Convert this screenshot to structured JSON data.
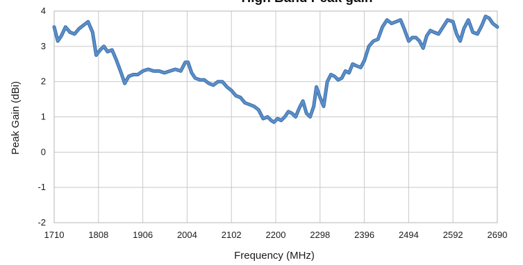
{
  "chart_data": {
    "type": "line",
    "title": "High Band Peak gain",
    "xlabel": "Frequency (MHz)",
    "ylabel": "Peak Gain (dBi)",
    "xlim": [
      1710,
      2690
    ],
    "ylim": [
      -2,
      4
    ],
    "x_ticks": [
      1710,
      1808,
      1906,
      2004,
      2102,
      2200,
      2298,
      2396,
      2494,
      2592,
      2690
    ],
    "y_ticks": [
      -2,
      -1,
      0,
      1,
      2,
      3,
      4
    ],
    "grid": true,
    "legend": "none",
    "line_color": "#5b8fc9",
    "line_outline_color": "#3a6da8",
    "series": [
      {
        "x": [
          1710,
          1718,
          1726,
          1735,
          1745,
          1755,
          1765,
          1775,
          1785,
          1795,
          1803,
          1812,
          1820,
          1828,
          1838,
          1848,
          1858,
          1866,
          1875,
          1885,
          1895,
          1906,
          1918,
          1930,
          1942,
          1954,
          1966,
          1978,
          1990,
          2000,
          2006,
          2014,
          2022,
          2032,
          2042,
          2052,
          2062,
          2072,
          2082,
          2092,
          2102,
          2112,
          2122,
          2132,
          2142,
          2152,
          2162,
          2172,
          2182,
          2190,
          2196,
          2204,
          2212,
          2220,
          2228,
          2236,
          2244,
          2252,
          2260,
          2268,
          2276,
          2284,
          2290,
          2298,
          2306,
          2314,
          2322,
          2330,
          2338,
          2346,
          2354,
          2362,
          2370,
          2378,
          2388,
          2396,
          2406,
          2416,
          2426,
          2436,
          2446,
          2456,
          2466,
          2476,
          2484,
          2494,
          2502,
          2510,
          2518,
          2526,
          2534,
          2542,
          2550,
          2560,
          2570,
          2580,
          2592,
          2600,
          2608,
          2616,
          2626,
          2636,
          2646,
          2656,
          2664,
          2672,
          2680,
          2690
        ],
        "y": [
          3.55,
          3.15,
          3.3,
          3.55,
          3.4,
          3.35,
          3.5,
          3.6,
          3.7,
          3.4,
          2.75,
          2.9,
          3.0,
          2.85,
          2.9,
          2.6,
          2.25,
          1.95,
          2.15,
          2.2,
          2.2,
          2.3,
          2.35,
          2.3,
          2.3,
          2.25,
          2.3,
          2.35,
          2.3,
          2.55,
          2.55,
          2.25,
          2.1,
          2.05,
          2.05,
          1.95,
          1.9,
          2.0,
          2.0,
          1.85,
          1.75,
          1.6,
          1.55,
          1.4,
          1.35,
          1.3,
          1.2,
          0.95,
          1.0,
          0.9,
          0.85,
          0.95,
          0.9,
          1.0,
          1.15,
          1.1,
          1.0,
          1.25,
          1.45,
          1.1,
          1.0,
          1.3,
          1.85,
          1.55,
          1.3,
          2.0,
          2.2,
          2.15,
          2.05,
          2.1,
          2.3,
          2.25,
          2.5,
          2.45,
          2.4,
          2.6,
          3.0,
          3.15,
          3.2,
          3.55,
          3.75,
          3.65,
          3.7,
          3.75,
          3.5,
          3.15,
          3.25,
          3.25,
          3.15,
          2.95,
          3.3,
          3.45,
          3.4,
          3.35,
          3.55,
          3.75,
          3.7,
          3.35,
          3.15,
          3.5,
          3.75,
          3.4,
          3.35,
          3.6,
          3.85,
          3.8,
          3.65,
          3.55
        ]
      }
    ]
  }
}
